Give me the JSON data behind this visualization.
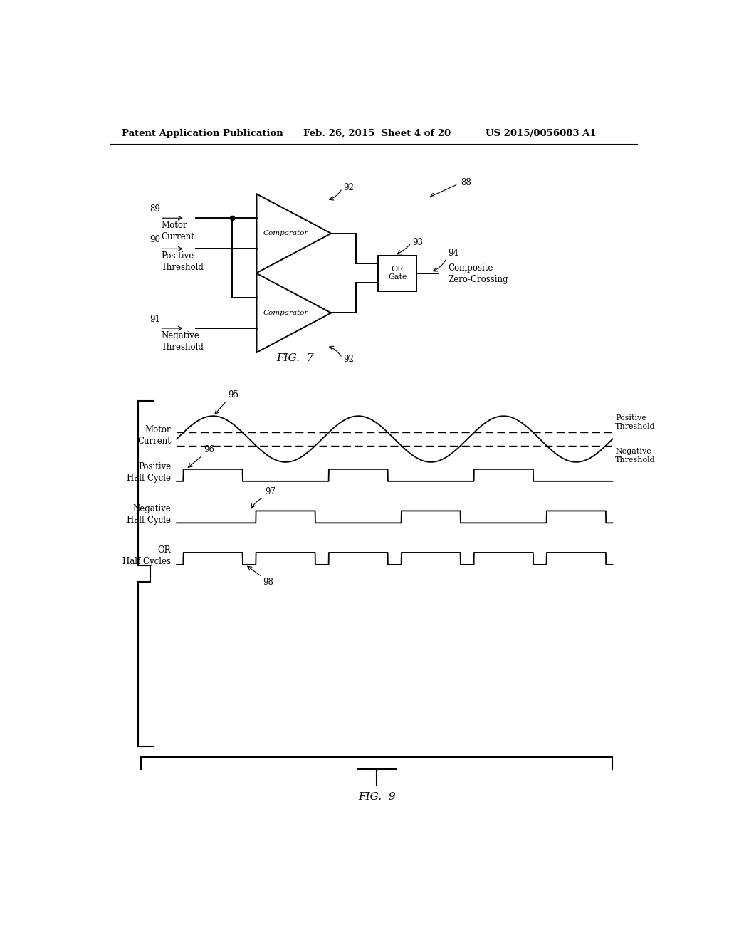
{
  "bg_color": "#ffffff",
  "header_left": "Patent Application Publication",
  "header_mid": "Feb. 26, 2015  Sheet 4 of 20",
  "header_right": "US 2015/0056083 A1",
  "fig7_label": "FIG.  7",
  "fig9_label": "FIG.  9",
  "comp_label": "Comparator",
  "or_gate_label": "OR\nGate",
  "label_88": "88",
  "label_89": "89",
  "label_90": "90",
  "label_91": "91",
  "label_92": "92",
  "label_93": "93",
  "label_94": "94",
  "text_motor_current": "Motor\nCurrent",
  "text_positive_threshold": "Positive\nThreshold",
  "text_negative_threshold": "Negative\nThreshold",
  "text_composite": "Composite\nZero-Crossing",
  "label_95": "95",
  "label_96": "96",
  "label_97": "97",
  "label_98": "98",
  "text_motor_current2": "Motor\nCurrent",
  "text_positive_half": "Positive\nHalf Cycle",
  "text_negative_half": "Negative\nHalf Cycle",
  "text_or_half": "OR\nHalf Cycles",
  "text_positive_thresh2": "Positive\nThreshold",
  "text_negative_thresh2": "Negative\nThreshold"
}
